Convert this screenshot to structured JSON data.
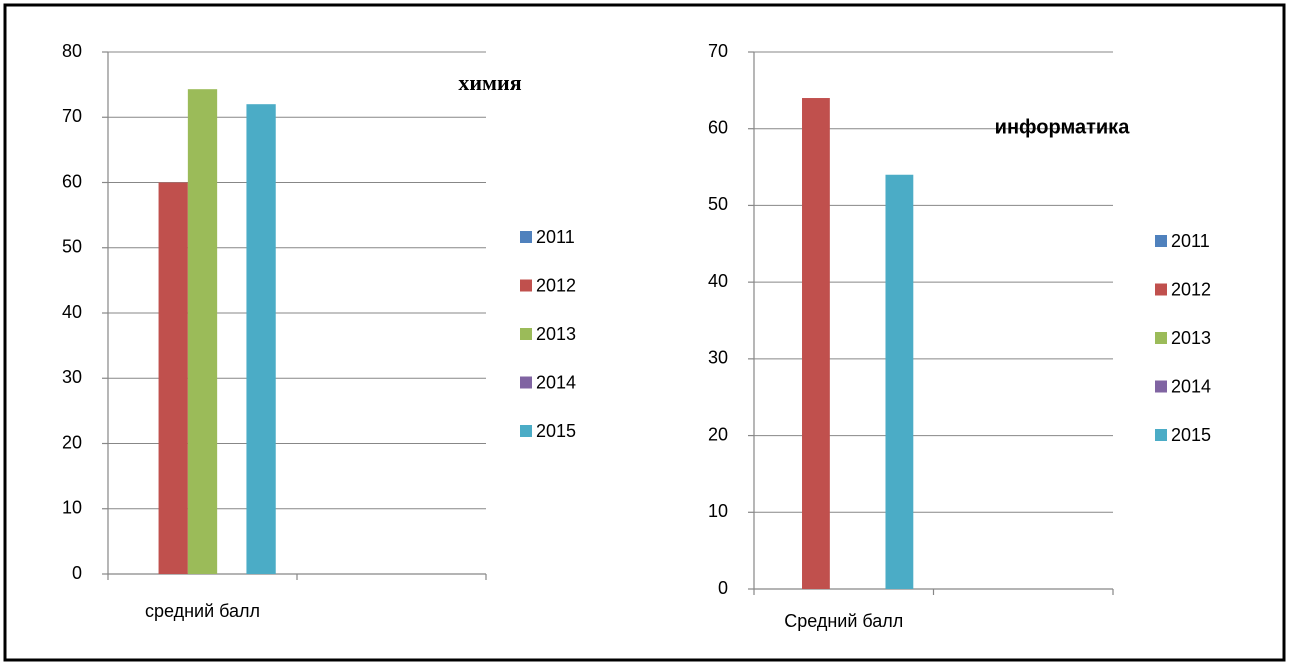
{
  "chart_data": [
    {
      "type": "bar",
      "title": "химия",
      "categories": [
        "средний балл",
        null
      ],
      "series": [
        {
          "name": "2011",
          "color": "#4f81bd",
          "values": [
            null,
            null
          ]
        },
        {
          "name": "2012",
          "color": "#c0504d",
          "values": [
            60,
            null
          ]
        },
        {
          "name": "2013",
          "color": "#9bbb59",
          "values": [
            74.3,
            null
          ]
        },
        {
          "name": "2014",
          "color": "#8064a2",
          "values": [
            null,
            null
          ]
        },
        {
          "name": "2015",
          "color": "#4bacc6",
          "values": [
            72,
            null
          ]
        }
      ],
      "ylim": [
        0,
        80
      ],
      "yticks": [
        0,
        10,
        20,
        30,
        40,
        50,
        60,
        70,
        80
      ],
      "grid": true,
      "legend": "right"
    },
    {
      "type": "bar",
      "title": "информатика",
      "categories": [
        "Средний балл",
        null
      ],
      "series": [
        {
          "name": "2011",
          "color": "#4f81bd",
          "values": [
            null,
            null
          ]
        },
        {
          "name": "2012",
          "color": "#c0504d",
          "values": [
            64,
            null
          ]
        },
        {
          "name": "2013",
          "color": "#9bbb59",
          "values": [
            null,
            null
          ]
        },
        {
          "name": "2014",
          "color": "#8064a2",
          "values": [
            null,
            null
          ]
        },
        {
          "name": "2015",
          "color": "#4bacc6",
          "values": [
            54,
            null
          ]
        }
      ],
      "ylim": [
        0,
        70
      ],
      "yticks": [
        0,
        10,
        20,
        30,
        40,
        50,
        60,
        70
      ],
      "grid": true,
      "legend": "right"
    }
  ]
}
